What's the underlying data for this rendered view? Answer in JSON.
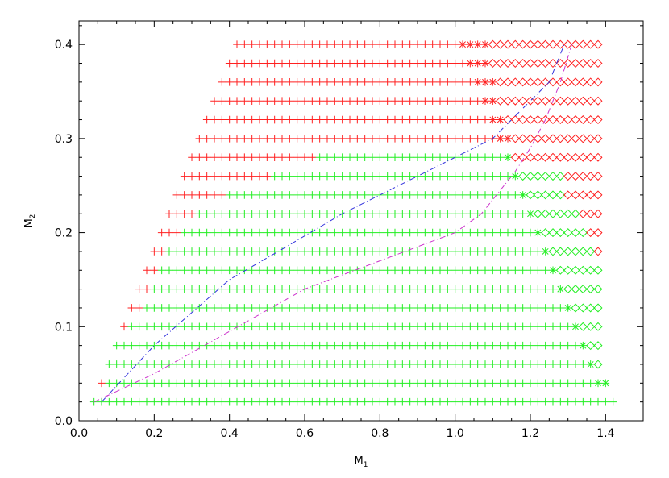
{
  "chart_data": {
    "type": "scatter",
    "title": "",
    "xlabel": "M",
    "xlabel_sub": "1",
    "ylabel": "M",
    "ylabel_sub": "2",
    "xlim": [
      0.0,
      1.5
    ],
    "ylim": [
      0.0,
      0.425
    ],
    "xticks": [
      0.0,
      0.2,
      0.4,
      0.6,
      0.8,
      1.0,
      1.2,
      1.4
    ],
    "xtick_labels": [
      "0.0",
      "0.2",
      "0.4",
      "0.6",
      "0.8",
      "1.0",
      "1.2",
      "1.4"
    ],
    "yticks": [
      0.0,
      0.1,
      0.2,
      0.3,
      0.4
    ],
    "ytick_labels": [
      "0.0",
      "0.1",
      "0.2",
      "0.3",
      "0.4"
    ],
    "grid": false,
    "legend": "none",
    "grid_step_m1": 0.02,
    "colors": {
      "red": "#ff2020",
      "green": "#22ee22",
      "blue": "#3333dd",
      "magenta": "#cc33cc"
    },
    "rows": [
      {
        "m2": 0.02,
        "m1_start": 0.04,
        "m1_end": 1.42,
        "green_from": 0.04,
        "star_from": 9,
        "diamond_from": 9,
        "diamond_red_from": 9
      },
      {
        "m2": 0.04,
        "m1_start": 0.06,
        "m1_end": 1.4,
        "green_from": 0.08,
        "star_from": 1.38,
        "diamond_from": 9,
        "diamond_red_from": 9
      },
      {
        "m2": 0.06,
        "m1_start": 0.08,
        "m1_end": 1.38,
        "green_from": 0.08,
        "star_from": 1.36,
        "diamond_from": 1.38,
        "diamond_red_from": 9
      },
      {
        "m2": 0.08,
        "m1_start": 0.1,
        "m1_end": 1.38,
        "green_from": 0.1,
        "star_from": 1.34,
        "diamond_from": 1.36,
        "diamond_red_from": 9
      },
      {
        "m2": 0.1,
        "m1_start": 0.12,
        "m1_end": 1.38,
        "green_from": 0.14,
        "star_from": 1.32,
        "diamond_from": 1.34,
        "diamond_red_from": 9
      },
      {
        "m2": 0.12,
        "m1_start": 0.14,
        "m1_end": 1.38,
        "green_from": 0.18,
        "star_from": 1.3,
        "diamond_from": 1.32,
        "diamond_red_from": 9
      },
      {
        "m2": 0.14,
        "m1_start": 0.16,
        "m1_end": 1.38,
        "green_from": 0.2,
        "star_from": 1.28,
        "diamond_from": 1.3,
        "diamond_red_from": 9
      },
      {
        "m2": 0.16,
        "m1_start": 0.18,
        "m1_end": 1.38,
        "green_from": 0.22,
        "star_from": 1.26,
        "diamond_from": 1.28,
        "diamond_red_from": 9
      },
      {
        "m2": 0.18,
        "m1_start": 0.2,
        "m1_end": 1.38,
        "green_from": 0.24,
        "star_from": 1.24,
        "diamond_from": 1.26,
        "diamond_red_from": 1.38
      },
      {
        "m2": 0.2,
        "m1_start": 0.22,
        "m1_end": 1.38,
        "green_from": 0.28,
        "star_from": 1.22,
        "diamond_from": 1.24,
        "diamond_red_from": 1.36
      },
      {
        "m2": 0.22,
        "m1_start": 0.24,
        "m1_end": 1.38,
        "green_from": 0.32,
        "star_from": 1.2,
        "diamond_from": 1.22,
        "diamond_red_from": 1.34
      },
      {
        "m2": 0.24,
        "m1_start": 0.26,
        "m1_end": 1.38,
        "green_from": 0.4,
        "star_from": 1.18,
        "diamond_from": 1.2,
        "diamond_red_from": 1.3
      },
      {
        "m2": 0.26,
        "m1_start": 0.28,
        "m1_end": 1.38,
        "green_from": 0.52,
        "star_from": 1.16,
        "diamond_from": 1.18,
        "diamond_red_from": 1.3
      },
      {
        "m2": 0.28,
        "m1_start": 0.3,
        "m1_end": 1.38,
        "green_from": 0.64,
        "star_from": 1.14,
        "diamond_from": 1.16,
        "diamond_red_from": 1.16
      },
      {
        "m2": 0.3,
        "m1_start": 0.32,
        "m1_end": 1.38,
        "green_from": 9,
        "star_from": 1.12,
        "diamond_from": 1.16,
        "diamond_red_from": 1.16
      },
      {
        "m2": 0.32,
        "m1_start": 0.34,
        "m1_end": 1.38,
        "green_from": 9,
        "star_from": 1.1,
        "diamond_from": 1.14,
        "diamond_red_from": 1.14
      },
      {
        "m2": 0.34,
        "m1_start": 0.36,
        "m1_end": 1.38,
        "green_from": 9,
        "star_from": 1.08,
        "diamond_from": 1.12,
        "diamond_red_from": 1.12
      },
      {
        "m2": 0.36,
        "m1_start": 0.38,
        "m1_end": 1.38,
        "green_from": 9,
        "star_from": 1.06,
        "diamond_from": 1.12,
        "diamond_red_from": 1.12
      },
      {
        "m2": 0.38,
        "m1_start": 0.4,
        "m1_end": 1.38,
        "green_from": 9,
        "star_from": 1.04,
        "diamond_from": 1.1,
        "diamond_red_from": 1.1
      },
      {
        "m2": 0.4,
        "m1_start": 0.42,
        "m1_end": 1.38,
        "green_from": 9,
        "star_from": 1.02,
        "diamond_from": 1.1,
        "diamond_red_from": 1.1
      }
    ],
    "lines": [
      {
        "style": "dash-dot",
        "color": "#3333dd",
        "x": [
          0.06,
          0.2,
          0.4,
          0.53,
          0.7,
          0.9,
          1.0,
          1.1,
          1.15,
          1.2,
          1.25,
          1.29
        ],
        "y": [
          0.02,
          0.08,
          0.15,
          0.18,
          0.22,
          0.26,
          0.28,
          0.3,
          0.32,
          0.34,
          0.36,
          0.4
        ]
      },
      {
        "style": "dash-dot",
        "color": "#cc33cc",
        "x": [
          0.04,
          0.2,
          0.4,
          0.6,
          0.8,
          1.0,
          1.07,
          1.12,
          1.16,
          1.2,
          1.24,
          1.28,
          1.31
        ],
        "y": [
          0.02,
          0.05,
          0.095,
          0.14,
          0.17,
          0.2,
          0.22,
          0.245,
          0.265,
          0.29,
          0.32,
          0.36,
          0.4
        ]
      }
    ]
  }
}
